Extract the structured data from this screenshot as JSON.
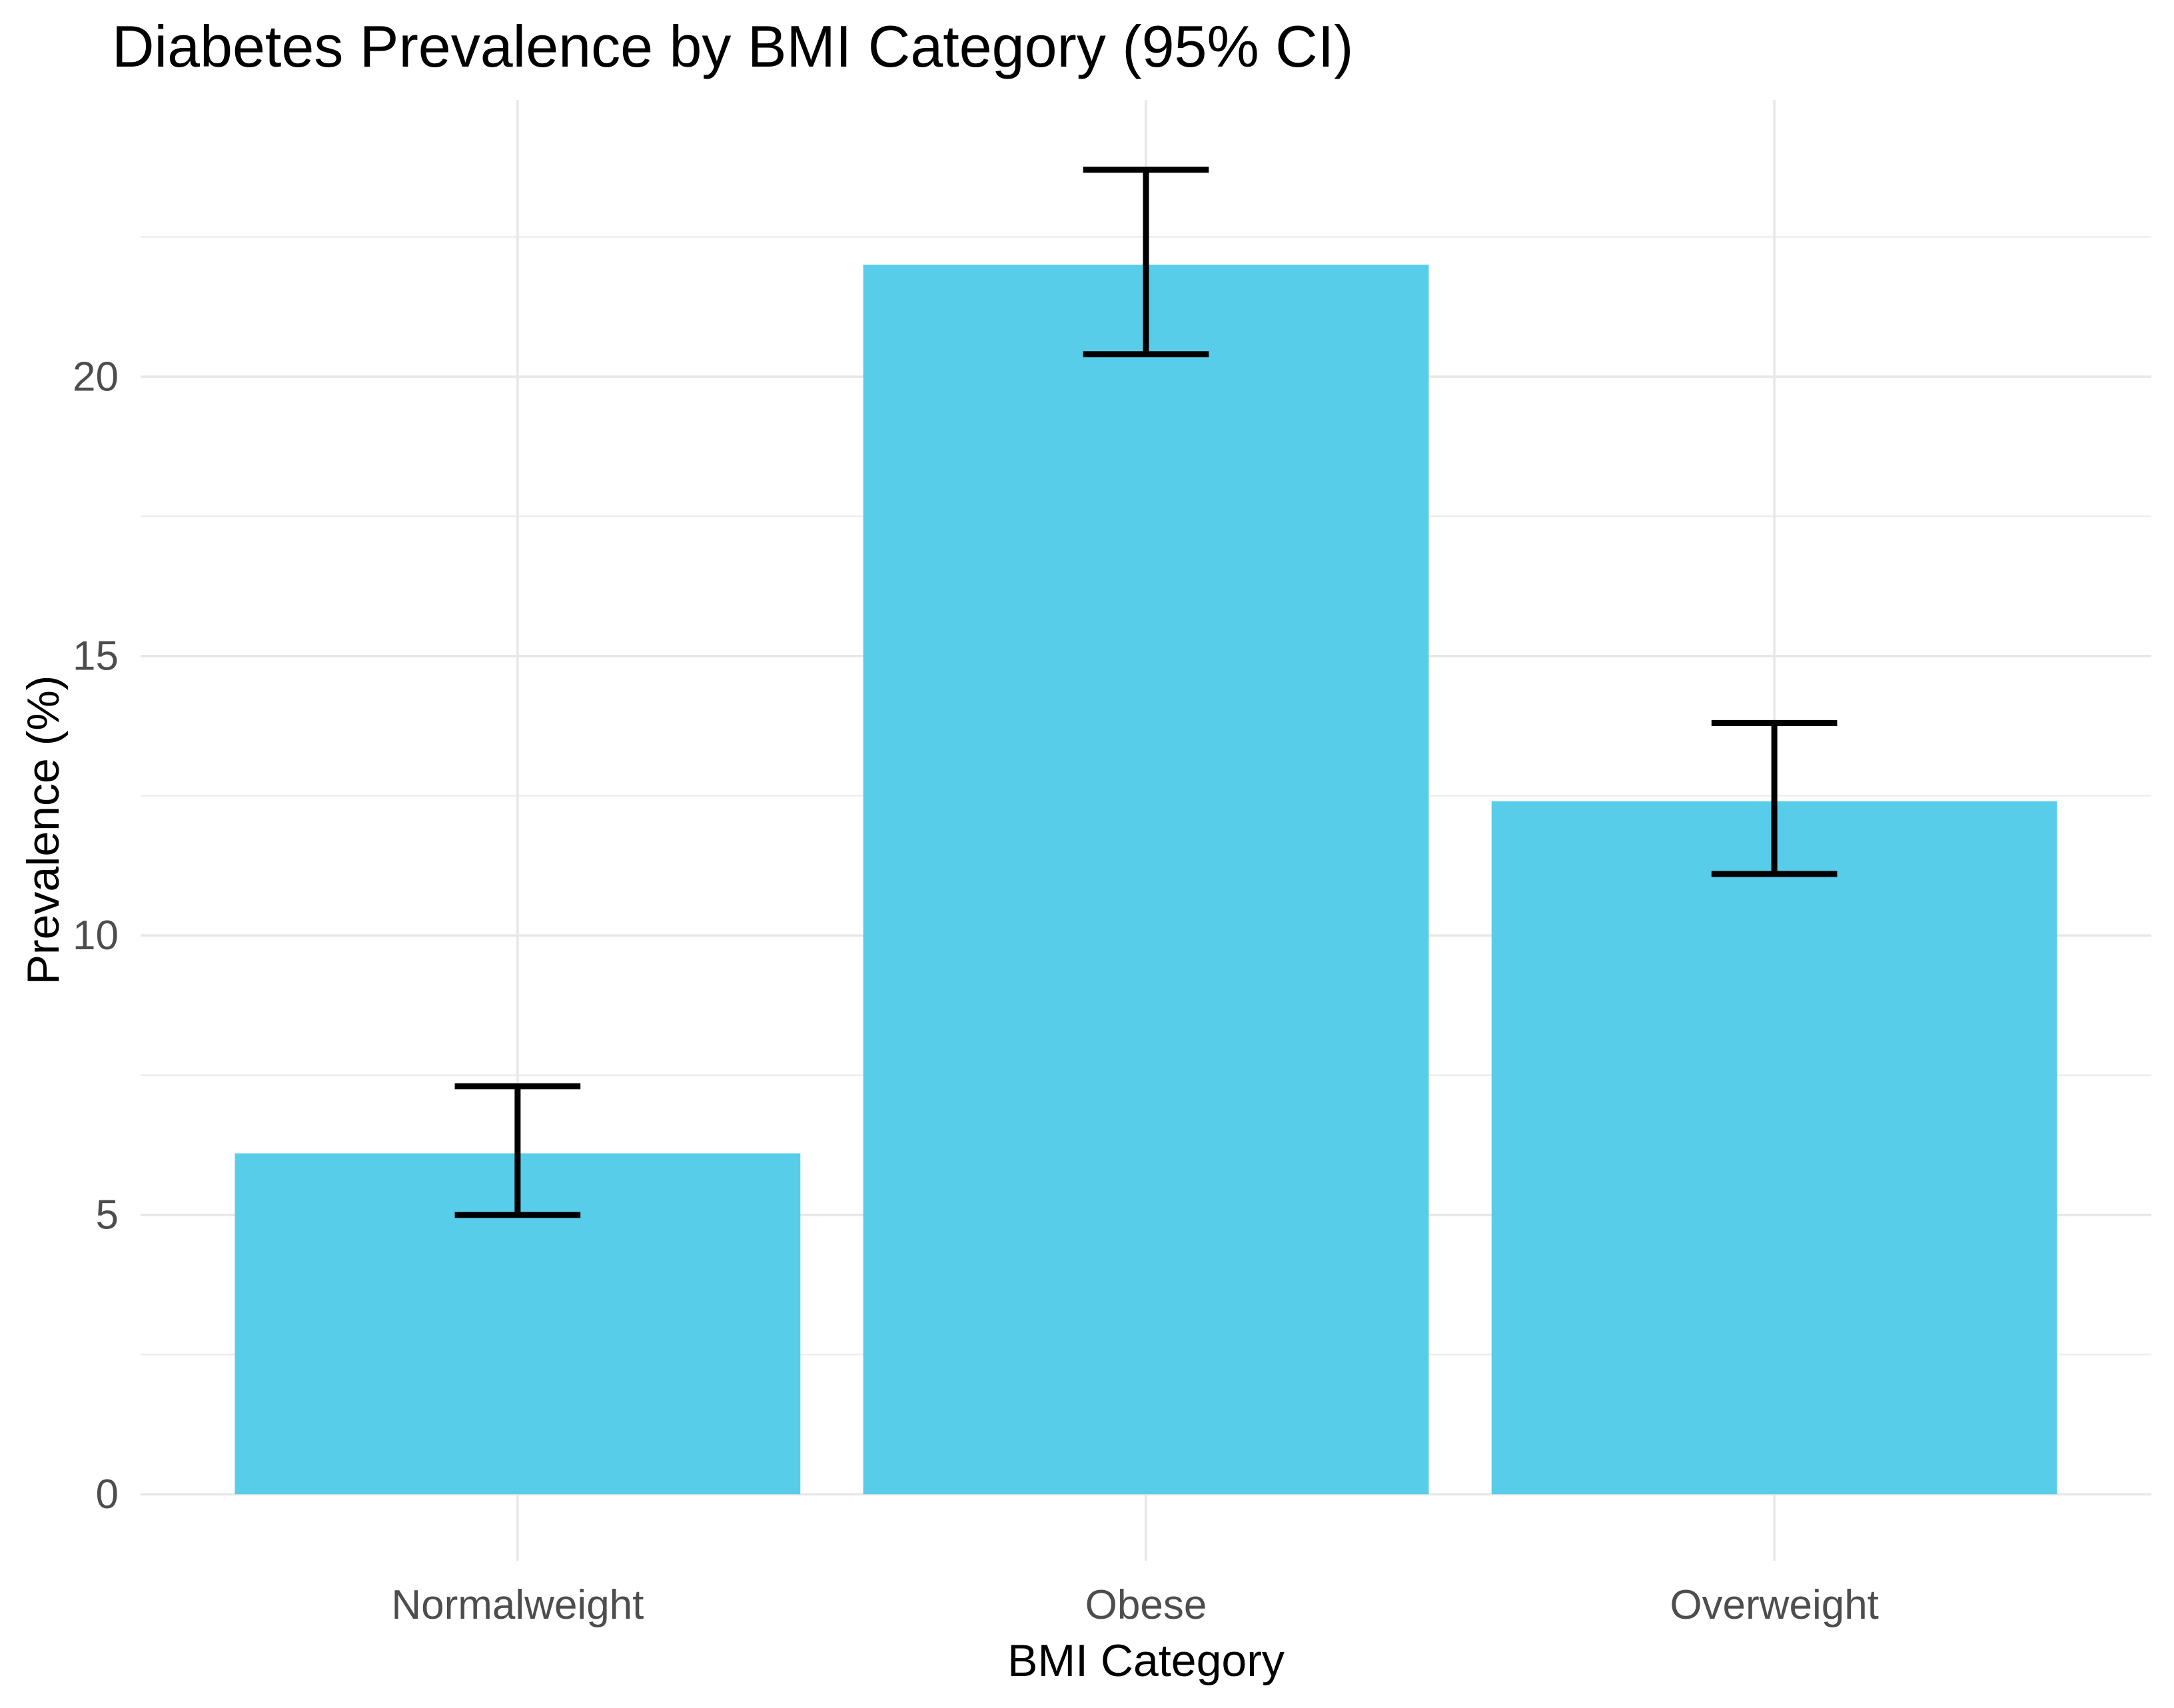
{
  "chart_data": {
    "type": "bar",
    "title": "Diabetes Prevalence by BMI Category (95% CI)",
    "xlabel": "BMI Category",
    "ylabel": "Prevalence (%)",
    "categories": [
      "Normalweight",
      "Obese",
      "Overweight"
    ],
    "values": [
      6.1,
      22.0,
      12.4
    ],
    "ci_low": [
      5.0,
      20.4,
      11.1
    ],
    "ci_high": [
      7.3,
      23.7,
      13.8
    ],
    "yticks": [
      0,
      5,
      10,
      15,
      20
    ],
    "yticks_minor": [
      2.5,
      7.5,
      12.5,
      17.5,
      22.5
    ],
    "ylim": [
      -1.19,
      24.95
    ],
    "grid": true,
    "legend_position": "none",
    "colors": {
      "bar_fill": "#58CDE9",
      "error_bar": "#000000",
      "grid_major": "#E7E7E7",
      "grid_minor": "#EDEDED",
      "axis_text": "#4D4D4D",
      "title_text": "#000000",
      "background": "#FFFFFF"
    }
  }
}
